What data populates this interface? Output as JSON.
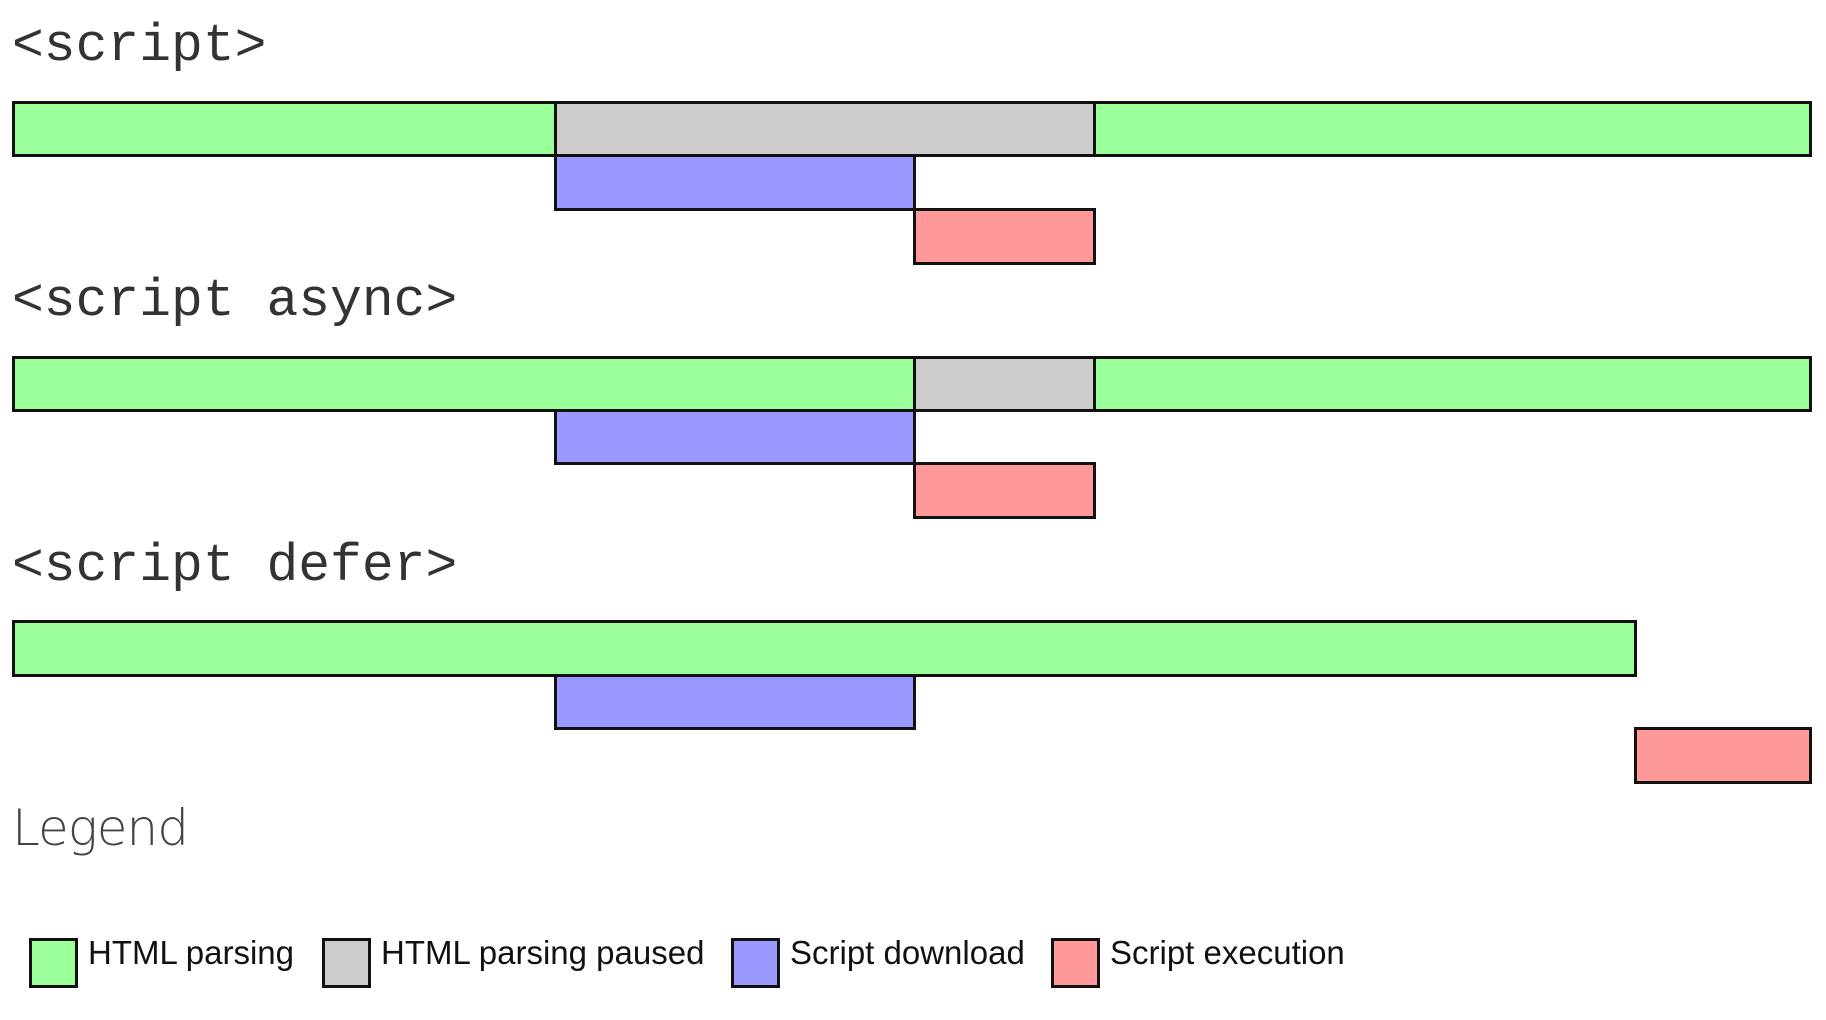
{
  "colors": {
    "html_parsing": "#99ff99",
    "html_parsing_paused": "#cccccc",
    "script_download": "#9999ff",
    "script_execution": "#ff9999",
    "border": "#111111"
  },
  "rows": [
    {
      "label": "<script>",
      "segments": [
        {
          "type": "html_parsing",
          "start": 0,
          "end": 541
        },
        {
          "type": "html_parsing_paused",
          "start": 541,
          "end": 1080
        },
        {
          "type": "html_parsing",
          "start": 1080,
          "end": 1797
        },
        {
          "type": "script_download",
          "start": 541,
          "end": 900
        },
        {
          "type": "script_execution",
          "start": 900,
          "end": 1080
        }
      ]
    },
    {
      "label": "<script async>",
      "segments": [
        {
          "type": "html_parsing",
          "start": 0,
          "end": 900
        },
        {
          "type": "html_parsing_paused",
          "start": 900,
          "end": 1080
        },
        {
          "type": "html_parsing",
          "start": 1080,
          "end": 1797
        },
        {
          "type": "script_download",
          "start": 541,
          "end": 900
        },
        {
          "type": "script_execution",
          "start": 900,
          "end": 1080
        }
      ]
    },
    {
      "label": "<script defer>",
      "segments": [
        {
          "type": "html_parsing",
          "start": 0,
          "end": 1621
        },
        {
          "type": "script_download",
          "start": 541,
          "end": 900
        },
        {
          "type": "script_execution",
          "start": 1621,
          "end": 1797
        }
      ]
    }
  ],
  "legend": {
    "title": "Legend",
    "items": [
      {
        "key": "html_parsing",
        "label": "HTML parsing"
      },
      {
        "key": "html_parsing_paused",
        "label": "HTML parsing paused"
      },
      {
        "key": "script_download",
        "label": "Script download"
      },
      {
        "key": "script_execution",
        "label": "Script execution"
      }
    ]
  }
}
